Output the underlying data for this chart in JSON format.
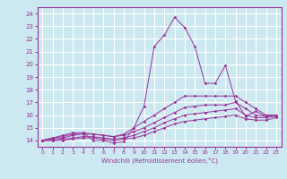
{
  "xlabel": "Windchill (Refroidissement éolien,°C)",
  "x": [
    0,
    1,
    2,
    3,
    4,
    5,
    6,
    7,
    8,
    9,
    10,
    11,
    12,
    13,
    14,
    15,
    16,
    17,
    18,
    19,
    20,
    21,
    22,
    23
  ],
  "line1": [
    14.0,
    14.2,
    14.4,
    14.6,
    14.6,
    14.0,
    14.0,
    13.8,
    13.9,
    15.0,
    16.7,
    21.4,
    22.3,
    23.7,
    22.9,
    21.4,
    18.5,
    18.5,
    19.9,
    17.1,
    15.9,
    16.3,
    15.9,
    16.0
  ],
  "line2": [
    14.0,
    14.2,
    14.3,
    14.5,
    14.6,
    14.5,
    14.4,
    14.3,
    14.5,
    15.0,
    15.5,
    16.0,
    16.5,
    17.0,
    17.5,
    17.5,
    17.5,
    17.5,
    17.5,
    17.5,
    17.0,
    16.5,
    16.0,
    16.0
  ],
  "line3": [
    14.0,
    14.1,
    14.2,
    14.4,
    14.5,
    14.5,
    14.4,
    14.3,
    14.4,
    14.7,
    15.0,
    15.4,
    15.8,
    16.2,
    16.6,
    16.7,
    16.8,
    16.8,
    16.8,
    17.0,
    16.5,
    16.0,
    15.9,
    16.0
  ],
  "line4": [
    14.0,
    14.0,
    14.1,
    14.2,
    14.3,
    14.3,
    14.2,
    14.1,
    14.2,
    14.4,
    14.7,
    15.0,
    15.4,
    15.7,
    16.0,
    16.1,
    16.2,
    16.3,
    16.4,
    16.5,
    16.0,
    15.8,
    15.8,
    15.9
  ],
  "line5": [
    14.0,
    14.0,
    14.0,
    14.1,
    14.2,
    14.2,
    14.1,
    14.0,
    14.1,
    14.2,
    14.4,
    14.7,
    15.0,
    15.3,
    15.5,
    15.6,
    15.7,
    15.8,
    15.9,
    16.0,
    15.7,
    15.6,
    15.6,
    15.8
  ],
  "color": "#993399",
  "bg_color": "#cce8f0",
  "grid_color": "#ffffff",
  "ylim": [
    13.5,
    24.5
  ],
  "xlim": [
    -0.5,
    23.5
  ],
  "yticks": [
    14,
    15,
    16,
    17,
    18,
    19,
    20,
    21,
    22,
    23,
    24
  ],
  "xticks": [
    0,
    1,
    2,
    3,
    4,
    5,
    6,
    7,
    8,
    9,
    10,
    11,
    12,
    13,
    14,
    15,
    16,
    17,
    18,
    19,
    20,
    21,
    22,
    23
  ]
}
